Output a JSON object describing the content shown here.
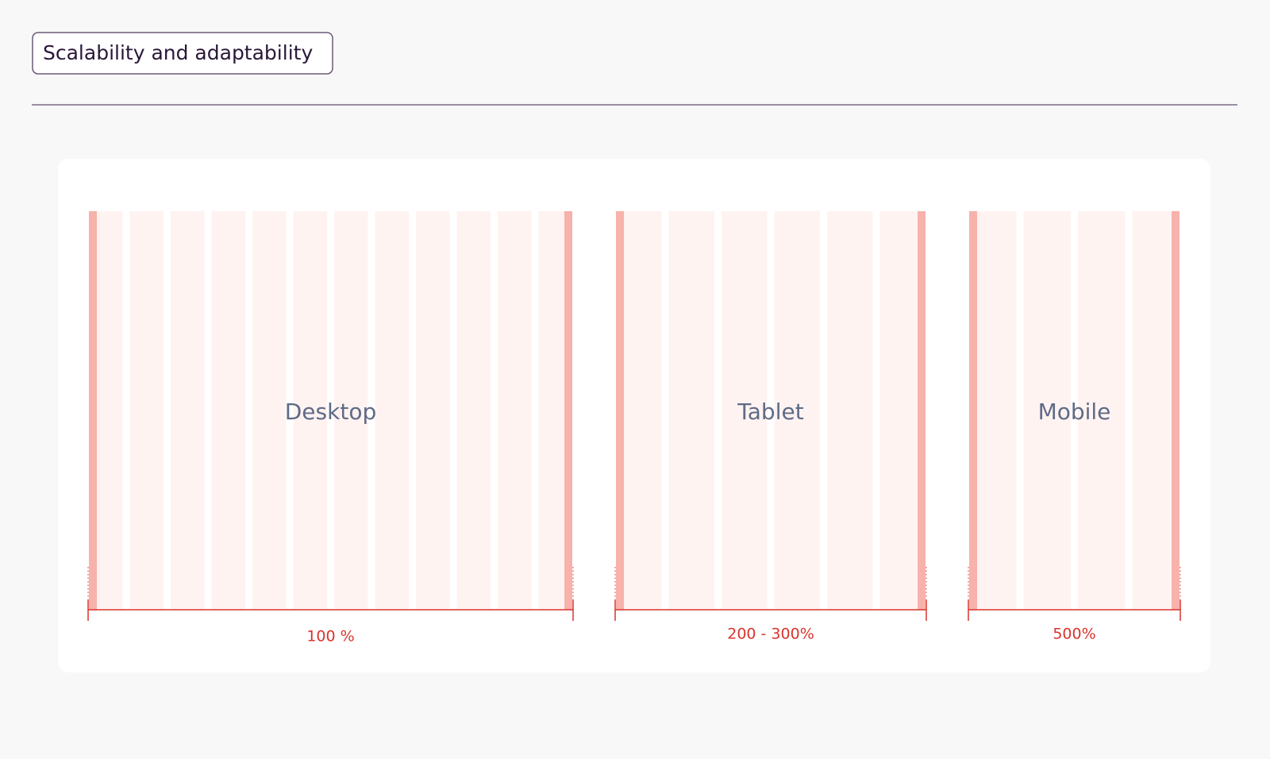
{
  "header": {
    "title": "Scalability and adaptability"
  },
  "panels": [
    {
      "label": "Desktop",
      "scale": "100 %"
    },
    {
      "label": "Tablet",
      "scale": "200 - 300%"
    },
    {
      "label": "Mobile",
      "scale": "500%"
    }
  ]
}
